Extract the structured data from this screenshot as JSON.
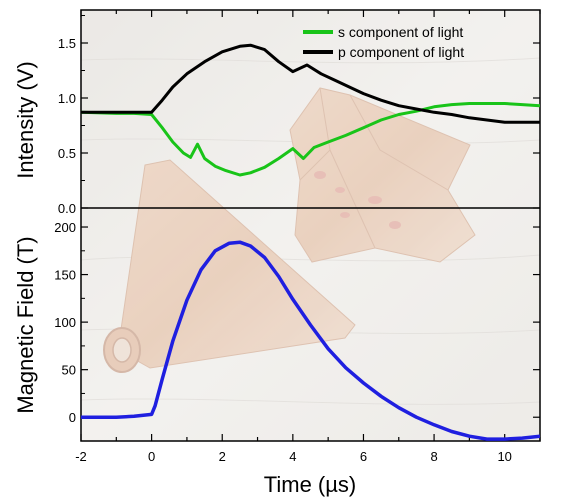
{
  "chart_data": [
    {
      "type": "line",
      "title": "",
      "xlabel": "Time (µs)",
      "ylabel": "Intensity (V)",
      "xlim": [
        -2,
        11
      ],
      "ylim": [
        0,
        1.8
      ],
      "x_ticks": [
        -2,
        0,
        2,
        4,
        6,
        8,
        10
      ],
      "y_ticks": [
        0.0,
        0.5,
        1.0,
        1.5
      ],
      "y_tick_labels": [
        "0.0",
        "0.5",
        "1.0",
        "1.5"
      ],
      "legend_position": "top-right",
      "series": [
        {
          "name": "s component of light",
          "color": "#19c419",
          "x": [
            -2,
            -1,
            -0.5,
            0,
            0.3,
            0.6,
            0.9,
            1.1,
            1.3,
            1.5,
            1.8,
            2.1,
            2.5,
            2.8,
            3.2,
            3.6,
            4.0,
            4.3,
            4.6,
            5.0,
            5.5,
            6.0,
            6.5,
            7.0,
            7.5,
            8.0,
            8.5,
            9.0,
            9.5,
            10.0,
            10.5,
            11.0
          ],
          "y": [
            0.87,
            0.86,
            0.86,
            0.85,
            0.73,
            0.6,
            0.5,
            0.46,
            0.58,
            0.45,
            0.38,
            0.34,
            0.3,
            0.32,
            0.37,
            0.45,
            0.54,
            0.45,
            0.55,
            0.6,
            0.66,
            0.73,
            0.8,
            0.85,
            0.88,
            0.92,
            0.94,
            0.95,
            0.95,
            0.95,
            0.94,
            0.93
          ]
        },
        {
          "name": "p component of light",
          "color": "#000000",
          "x": [
            -2,
            -1,
            -0.5,
            0,
            0.3,
            0.6,
            1.0,
            1.5,
            2.0,
            2.5,
            2.8,
            3.2,
            3.6,
            4.0,
            4.4,
            4.8,
            5.2,
            5.6,
            6.0,
            6.5,
            7.0,
            7.5,
            8.0,
            8.5,
            9.0,
            9.5,
            10.0,
            10.5,
            11.0
          ],
          "y": [
            0.87,
            0.87,
            0.87,
            0.87,
            0.98,
            1.1,
            1.22,
            1.33,
            1.42,
            1.47,
            1.48,
            1.44,
            1.33,
            1.24,
            1.3,
            1.22,
            1.16,
            1.1,
            1.04,
            0.98,
            0.93,
            0.9,
            0.87,
            0.85,
            0.82,
            0.8,
            0.78,
            0.78,
            0.78
          ]
        }
      ]
    },
    {
      "type": "line",
      "title": "",
      "xlabel": "Time (µs)",
      "ylabel": "Magnetic Field (T)",
      "xlim": [
        -2,
        11
      ],
      "ylim": [
        -25,
        220
      ],
      "x_ticks": [
        -2,
        0,
        2,
        4,
        6,
        8,
        10
      ],
      "y_ticks": [
        0,
        50,
        100,
        150,
        200
      ],
      "y_tick_labels": [
        "0",
        "50",
        "100",
        "150",
        "200"
      ],
      "series": [
        {
          "name": "",
          "color": "#1f1fe0",
          "x": [
            -2,
            -1,
            -0.5,
            0,
            0.1,
            0.3,
            0.6,
            1.0,
            1.4,
            1.8,
            2.2,
            2.5,
            2.8,
            3.2,
            3.6,
            4.0,
            4.5,
            5.0,
            5.5,
            6.0,
            6.5,
            7.0,
            7.5,
            8.0,
            8.5,
            9.0,
            9.5,
            10.0,
            10.5,
            11.0
          ],
          "y": [
            0,
            0,
            1,
            3,
            12,
            40,
            80,
            123,
            155,
            175,
            183,
            184,
            180,
            168,
            148,
            124,
            97,
            72,
            52,
            36,
            22,
            10,
            0,
            -8,
            -15,
            -20,
            -23,
            -23,
            -22,
            -20
          ]
        }
      ]
    }
  ]
}
